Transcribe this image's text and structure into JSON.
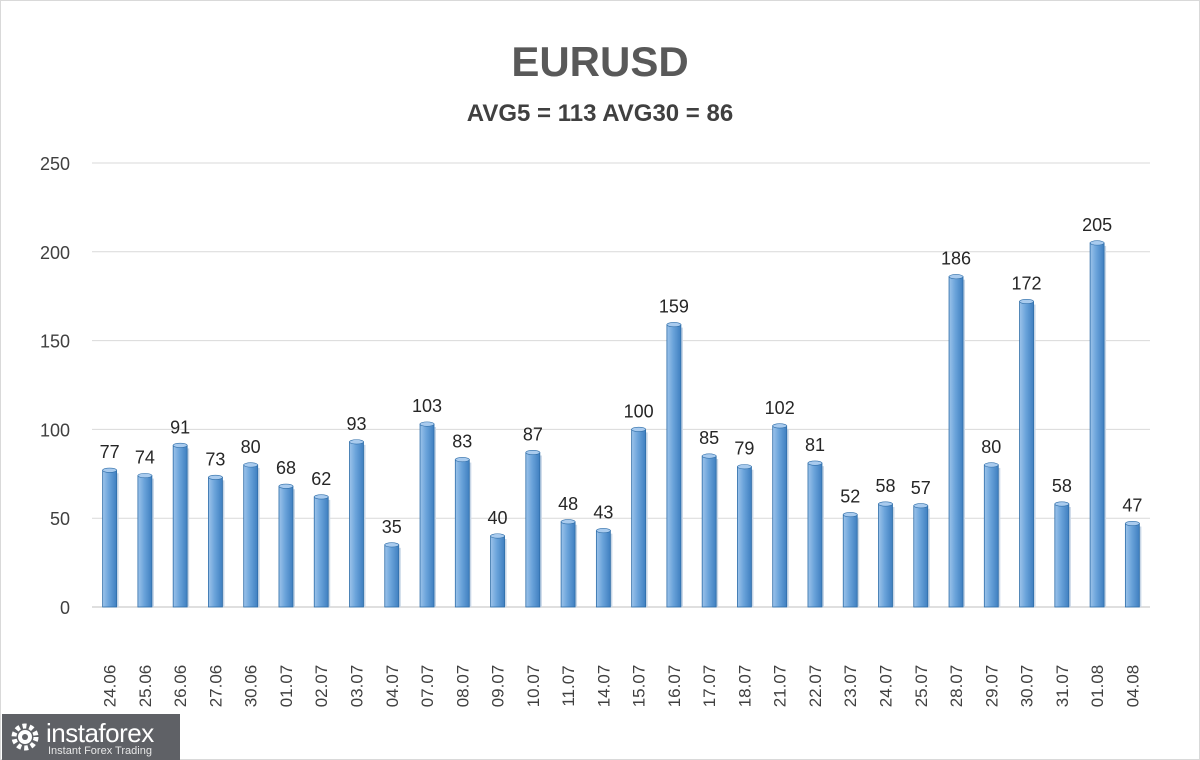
{
  "chart_data": {
    "type": "bar",
    "title": "EURUSD",
    "subtitle": "AVG5 = 113 AVG30 = 86",
    "categories": [
      "24.06",
      "25.06",
      "26.06",
      "27.06",
      "30.06",
      "01.07",
      "02.07",
      "03.07",
      "04.07",
      "07.07",
      "08.07",
      "09.07",
      "10.07",
      "11.07",
      "14.07",
      "15.07",
      "16.07",
      "17.07",
      "18.07",
      "21.07",
      "22.07",
      "23.07",
      "24.07",
      "25.07",
      "28.07",
      "29.07",
      "30.07",
      "31.07",
      "01.08",
      "04.08"
    ],
    "values": [
      77,
      74,
      91,
      73,
      80,
      68,
      62,
      93,
      35,
      103,
      83,
      40,
      87,
      48,
      43,
      100,
      159,
      85,
      79,
      102,
      81,
      52,
      58,
      57,
      186,
      80,
      172,
      58,
      205,
      47
    ],
    "ylim": [
      0,
      250
    ],
    "yticks": [
      0,
      50,
      100,
      150,
      200,
      250
    ],
    "grid": true,
    "data_labels": true,
    "bar_color": "#5b9bd5",
    "xlabel": "",
    "ylabel": ""
  },
  "logo": {
    "name": "instaforex",
    "tagline": "Instant Forex Trading"
  }
}
